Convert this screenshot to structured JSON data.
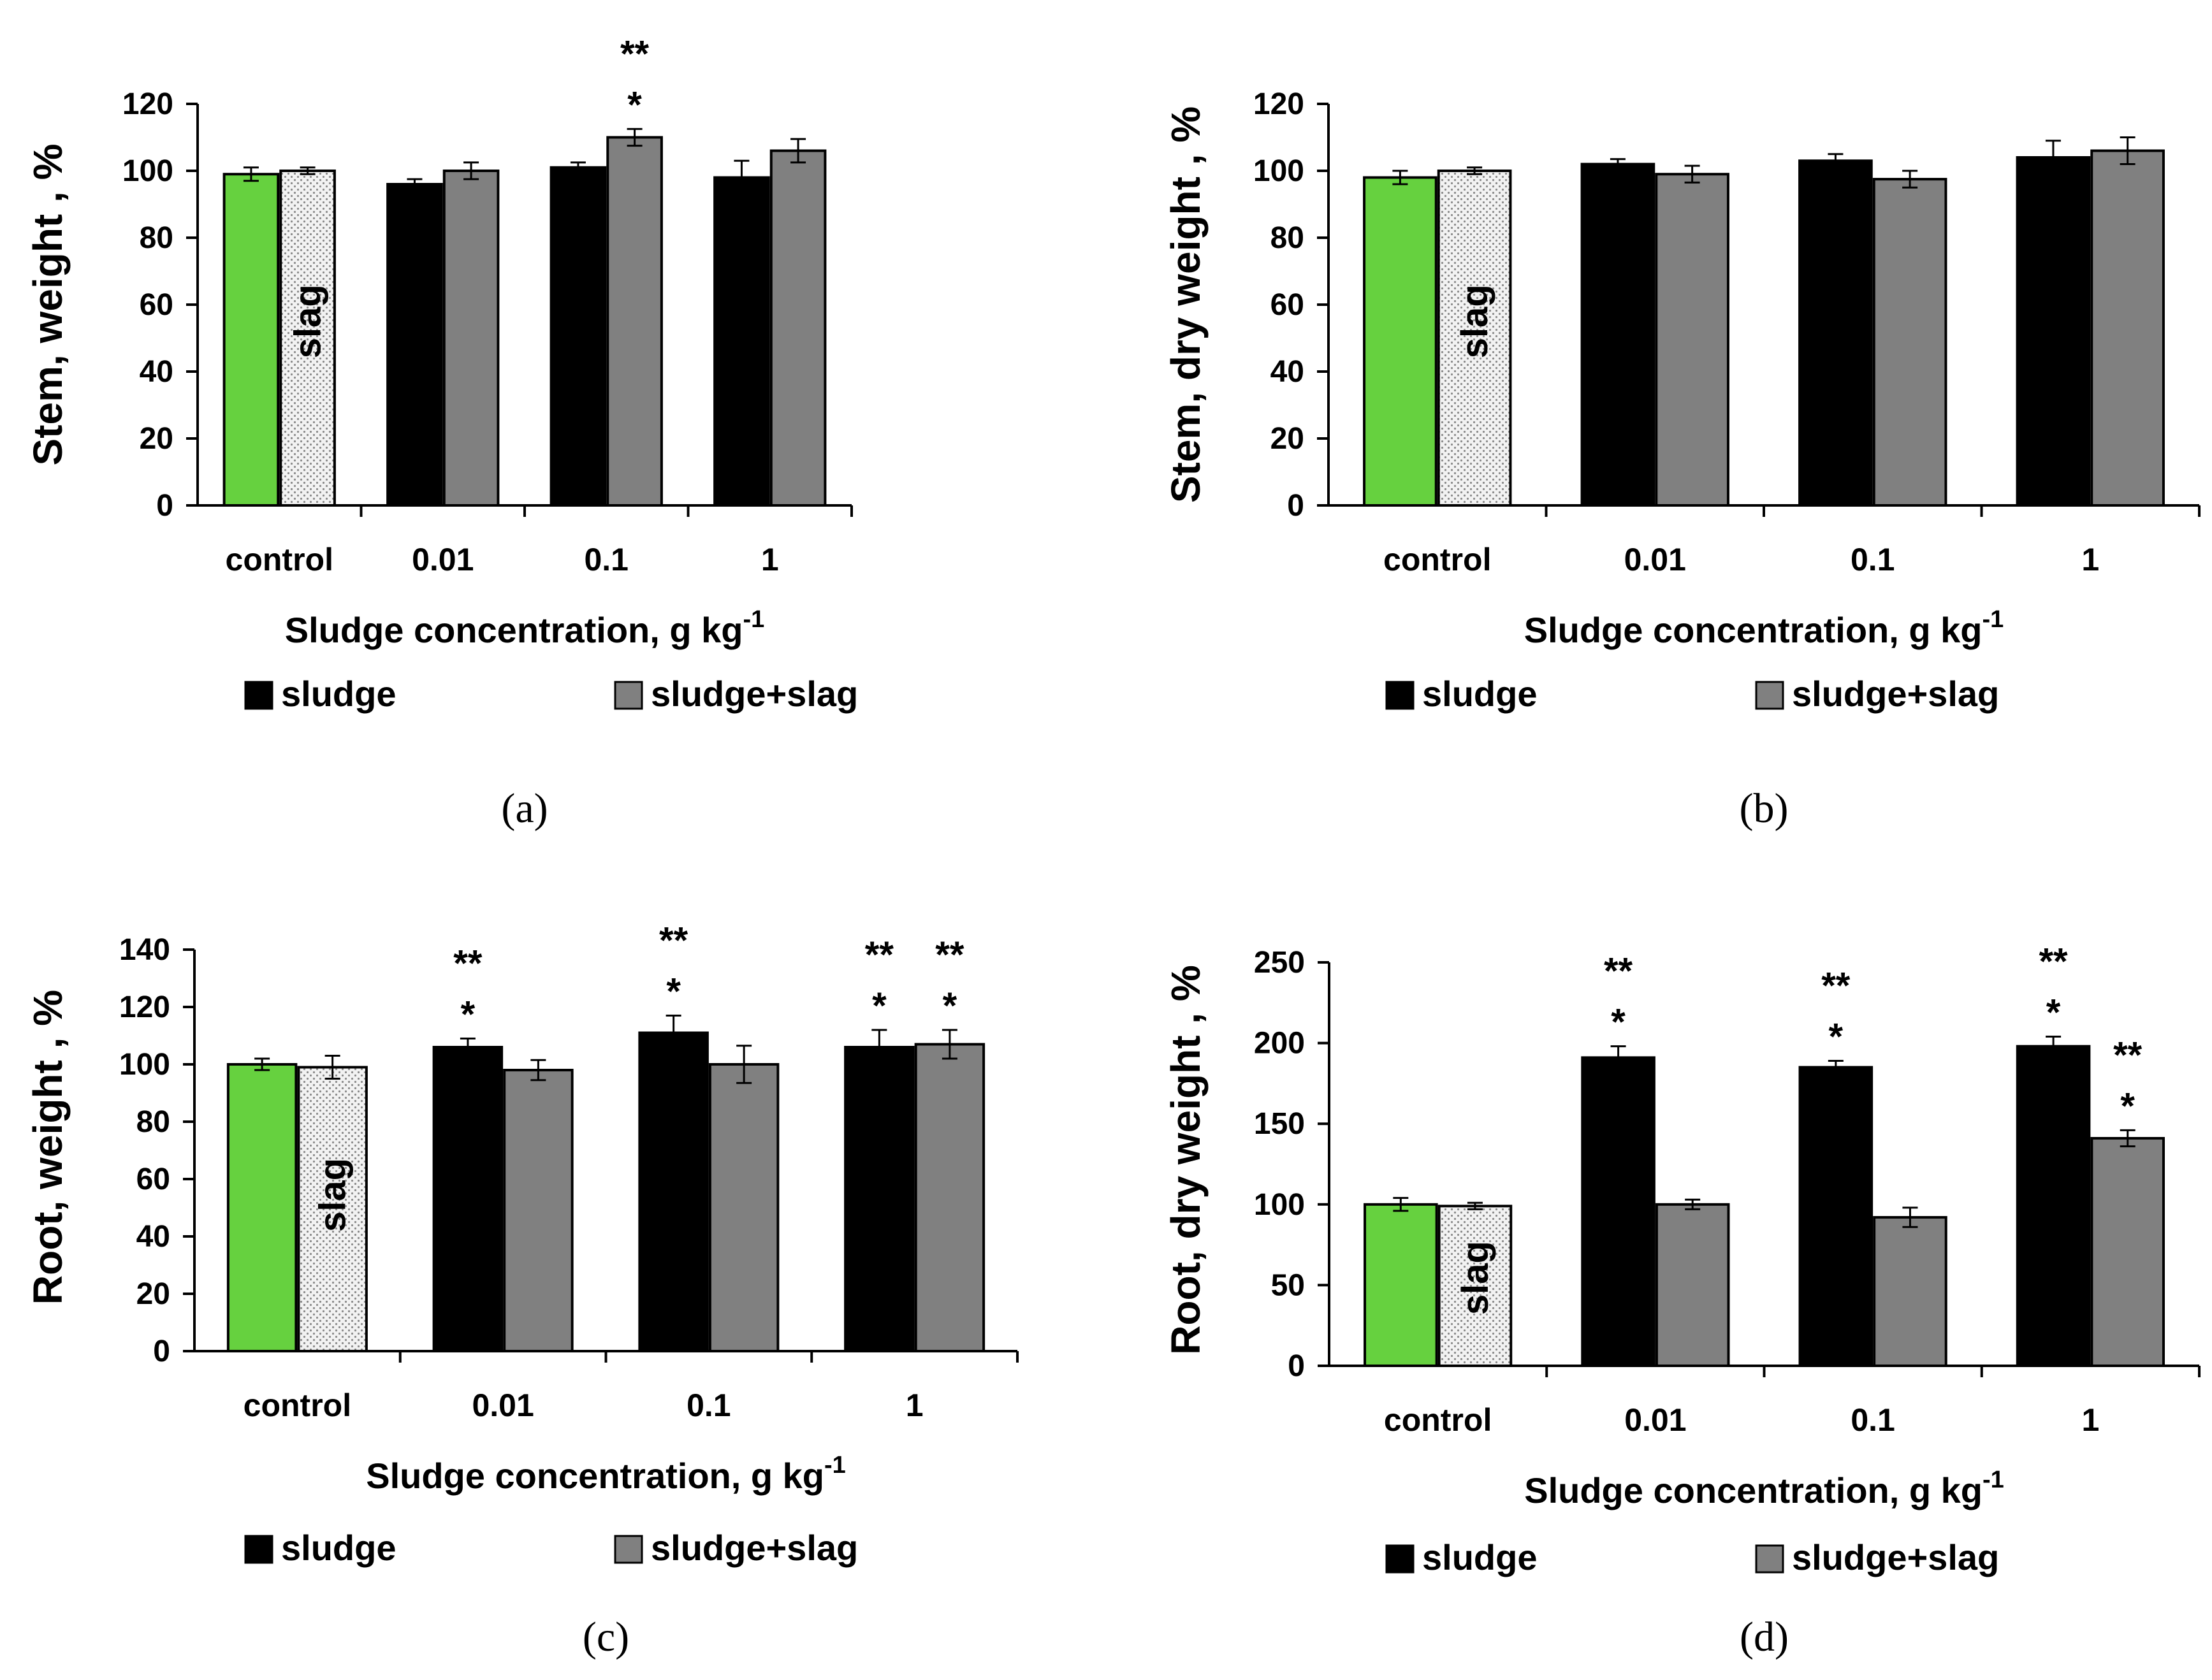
{
  "colors": {
    "control": "#66d13f",
    "slag_fill": "#ececec",
    "sludge": "#000000",
    "sludge_slag": "#808080",
    "axis": "#000000"
  },
  "legend_items": [
    {
      "label": "sludge",
      "color": "#000000"
    },
    {
      "label": "sludge+slag",
      "color": "#808080"
    }
  ],
  "chart_data": [
    {
      "type": "bar",
      "panel_label": "(a)",
      "ylabel": "Stem, weight , %",
      "xlabel": "Sludge concentration, g kg",
      "xlabel_sup": "-1",
      "categories": [
        "control",
        "0.01",
        "0.1",
        "1"
      ],
      "ylim": [
        0,
        120
      ],
      "yticks": [
        0,
        20,
        40,
        60,
        80,
        100,
        120
      ],
      "slag_bar_label": "slag",
      "legend": "bottom",
      "bars": [
        {
          "category": "control",
          "series": "control",
          "value": 99,
          "error": 2,
          "marks": []
        },
        {
          "category": "control",
          "series": "slag",
          "value": 100,
          "error": 1,
          "marks": []
        },
        {
          "category": "0.01",
          "series": "sludge",
          "value": 96,
          "error": 1.5,
          "marks": []
        },
        {
          "category": "0.01",
          "series": "sludge+slag",
          "value": 100,
          "error": 2.5,
          "marks": []
        },
        {
          "category": "0.1",
          "series": "sludge",
          "value": 101,
          "error": 1.5,
          "marks": []
        },
        {
          "category": "0.1",
          "series": "sludge+slag",
          "value": 110,
          "error": 2.5,
          "marks": [
            "*",
            "**"
          ]
        },
        {
          "category": "1",
          "series": "sludge",
          "value": 98,
          "error": 5,
          "marks": []
        },
        {
          "category": "1",
          "series": "sludge+slag",
          "value": 106,
          "error": 3.5,
          "marks": []
        }
      ]
    },
    {
      "type": "bar",
      "panel_label": "(b)",
      "ylabel": "Stem, dry weight , %",
      "xlabel": "Sludge concentration, g kg",
      "xlabel_sup": "-1",
      "categories": [
        "control",
        "0.01",
        "0.1",
        "1"
      ],
      "ylim": [
        0,
        120
      ],
      "yticks": [
        0,
        20,
        40,
        60,
        80,
        100,
        120
      ],
      "slag_bar_label": "slag",
      "legend": "bottom",
      "bars": [
        {
          "category": "control",
          "series": "control",
          "value": 98,
          "error": 2,
          "marks": []
        },
        {
          "category": "control",
          "series": "slag",
          "value": 100,
          "error": 1,
          "marks": []
        },
        {
          "category": "0.01",
          "series": "sludge",
          "value": 102,
          "error": 1.5,
          "marks": []
        },
        {
          "category": "0.01",
          "series": "sludge+slag",
          "value": 99,
          "error": 2.5,
          "marks": []
        },
        {
          "category": "0.1",
          "series": "sludge",
          "value": 103,
          "error": 2,
          "marks": []
        },
        {
          "category": "0.1",
          "series": "sludge+slag",
          "value": 97.5,
          "error": 2.5,
          "marks": []
        },
        {
          "category": "1",
          "series": "sludge",
          "value": 104,
          "error": 5,
          "marks": []
        },
        {
          "category": "1",
          "series": "sludge+slag",
          "value": 106,
          "error": 4,
          "marks": []
        }
      ]
    },
    {
      "type": "bar",
      "panel_label": "(c)",
      "ylabel": "Root, weight , %",
      "xlabel": "Sludge concentration, g kg",
      "xlabel_sup": "-1",
      "categories": [
        "control",
        "0.01",
        "0.1",
        "1"
      ],
      "ylim": [
        0,
        140
      ],
      "yticks": [
        0,
        20,
        40,
        60,
        80,
        100,
        120,
        140
      ],
      "slag_bar_label": "slag",
      "legend": "bottom",
      "bars": [
        {
          "category": "control",
          "series": "control",
          "value": 100,
          "error": 2,
          "marks": []
        },
        {
          "category": "control",
          "series": "slag",
          "value": 99,
          "error": 4,
          "marks": []
        },
        {
          "category": "0.01",
          "series": "sludge",
          "value": 106,
          "error": 3,
          "marks": [
            "*",
            "**"
          ]
        },
        {
          "category": "0.01",
          "series": "sludge+slag",
          "value": 98,
          "error": 3.5,
          "marks": []
        },
        {
          "category": "0.1",
          "series": "sludge",
          "value": 111,
          "error": 6,
          "marks": [
            "*",
            "**"
          ]
        },
        {
          "category": "0.1",
          "series": "sludge+slag",
          "value": 100,
          "error": 6.5,
          "marks": []
        },
        {
          "category": "1",
          "series": "sludge",
          "value": 106,
          "error": 6,
          "marks": [
            "*",
            "**"
          ]
        },
        {
          "category": "1",
          "series": "sludge+slag",
          "value": 107,
          "error": 5,
          "marks": [
            "*",
            "**"
          ]
        }
      ]
    },
    {
      "type": "bar",
      "panel_label": "(d)",
      "ylabel": "Root, dry weight , %",
      "xlabel": "Sludge concentration, g kg",
      "xlabel_sup": "-1",
      "categories": [
        "control",
        "0.01",
        "0.1",
        "1"
      ],
      "ylim": [
        0,
        250
      ],
      "yticks": [
        0,
        50,
        100,
        150,
        200,
        250
      ],
      "slag_bar_label": "slag",
      "legend": "bottom",
      "bars": [
        {
          "category": "control",
          "series": "control",
          "value": 100,
          "error": 4,
          "marks": []
        },
        {
          "category": "control",
          "series": "slag",
          "value": 99,
          "error": 2,
          "marks": []
        },
        {
          "category": "0.01",
          "series": "sludge",
          "value": 191,
          "error": 7,
          "marks": [
            "*",
            "**"
          ]
        },
        {
          "category": "0.01",
          "series": "sludge+slag",
          "value": 100,
          "error": 3,
          "marks": []
        },
        {
          "category": "0.1",
          "series": "sludge",
          "value": 185,
          "error": 4,
          "marks": [
            "*",
            "**"
          ]
        },
        {
          "category": "0.1",
          "series": "sludge+slag",
          "value": 92,
          "error": 6,
          "marks": []
        },
        {
          "category": "1",
          "series": "sludge",
          "value": 198,
          "error": 6,
          "marks": [
            "*",
            "**"
          ]
        },
        {
          "category": "1",
          "series": "sludge+slag",
          "value": 141,
          "error": 5,
          "marks": [
            "*",
            "**"
          ]
        }
      ]
    }
  ]
}
